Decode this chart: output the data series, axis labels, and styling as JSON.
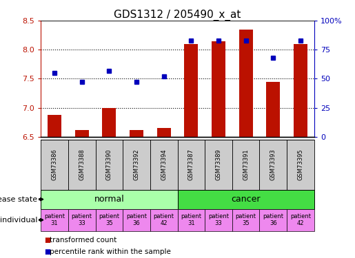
{
  "title": "GDS1312 / 205490_x_at",
  "samples": [
    "GSM73386",
    "GSM73388",
    "GSM73390",
    "GSM73392",
    "GSM73394",
    "GSM73387",
    "GSM73389",
    "GSM73391",
    "GSM73393",
    "GSM73395"
  ],
  "transformed_count": [
    6.88,
    6.62,
    7.0,
    6.62,
    6.65,
    8.1,
    8.15,
    8.35,
    7.45,
    8.1
  ],
  "percentile_rank": [
    55,
    47,
    57,
    47,
    52,
    83,
    83,
    83,
    68,
    83
  ],
  "ylim_left": [
    6.5,
    8.5
  ],
  "ylim_right": [
    0,
    100
  ],
  "yticks_left": [
    6.5,
    7.0,
    7.5,
    8.0,
    8.5
  ],
  "yticks_right": [
    0,
    25,
    50,
    75,
    100
  ],
  "ytick_labels_right": [
    "0",
    "25",
    "50",
    "75",
    "100%"
  ],
  "bar_color": "#bb1100",
  "marker_color": "#0000bb",
  "normal_color": "#aaffaa",
  "cancer_color": "#44dd44",
  "individual_color": "#ee88ee",
  "sample_bg_color": "#cccccc",
  "legend_red": "transformed count",
  "legend_blue": "percentile rank within the sample",
  "label_disease": "disease state",
  "label_individual": "individual",
  "title_fontsize": 11,
  "tick_fontsize": 8,
  "label_fontsize": 8,
  "sample_fontsize": 6,
  "disease_fontsize": 9,
  "individual_fontsize": 6,
  "legend_fontsize": 7.5
}
